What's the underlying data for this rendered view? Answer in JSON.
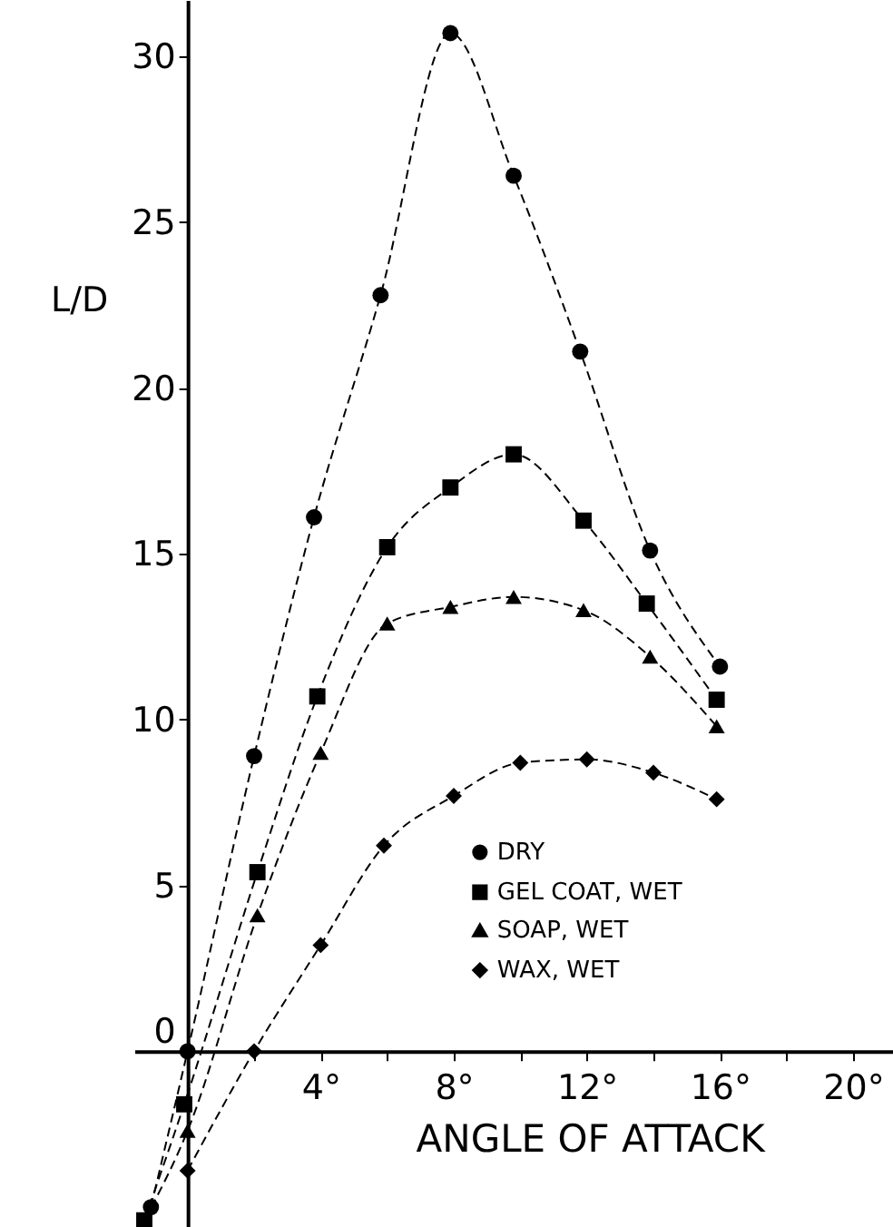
{
  "chart_data": {
    "type": "line",
    "xlabel": "ANGLE OF ATTACK",
    "ylabel": "L/D",
    "xlim": [
      -1.6,
      21.2
    ],
    "ylim": [
      -5.3,
      31.7
    ],
    "xticks": [
      {
        "value": 2,
        "label": null
      },
      {
        "value": 4,
        "label": "4°"
      },
      {
        "value": 6,
        "label": null
      },
      {
        "value": 8,
        "label": "8°"
      },
      {
        "value": 10,
        "label": null
      },
      {
        "value": 12,
        "label": "12°"
      },
      {
        "value": 14,
        "label": null
      },
      {
        "value": 16,
        "label": "16°"
      },
      {
        "value": 18,
        "label": null
      },
      {
        "value": 20,
        "label": "20°"
      }
    ],
    "yticks": [
      0,
      5,
      10,
      15,
      20,
      25,
      30
    ],
    "grid": false,
    "legend": "bottom",
    "line_style": "dashed",
    "series": [
      {
        "name": "DRY",
        "color": "#000000",
        "marker": "circle",
        "x": [
          -1.1,
          0,
          2,
          3.8,
          5.8,
          7.9,
          9.8,
          11.8,
          13.9,
          16
        ],
        "values": [
          -4.7,
          0,
          8.9,
          16.1,
          22.8,
          30.7,
          26.4,
          21.1,
          15.1,
          11.6
        ]
      },
      {
        "name": "GEL COAT, WET",
        "color": "#000000",
        "marker": "square",
        "x": [
          -1.3,
          -0.1,
          2.1,
          3.9,
          6,
          7.9,
          9.8,
          11.9,
          13.8,
          15.9
        ],
        "values": [
          -5.1,
          -1.6,
          5.4,
          10.7,
          15.2,
          17,
          18,
          16,
          13.5,
          10.6
        ]
      },
      {
        "name": "SOAP, WET",
        "color": "#000000",
        "marker": "triangle",
        "x": [
          -1.3,
          0,
          2.1,
          4,
          6,
          7.9,
          9.8,
          11.9,
          13.9,
          15.9
        ],
        "values": [
          -5.1,
          -2.4,
          4.1,
          9,
          12.9,
          13.4,
          13.7,
          13.3,
          11.9,
          9.8
        ]
      },
      {
        "name": "WAX, WET",
        "color": "#000000",
        "marker": "diamond",
        "x": [
          0,
          2,
          4,
          5.9,
          8,
          10,
          12,
          14,
          15.9
        ],
        "values": [
          -3.6,
          0,
          3.2,
          6.2,
          7.7,
          8.7,
          8.8,
          8.4,
          7.6
        ]
      }
    ]
  }
}
